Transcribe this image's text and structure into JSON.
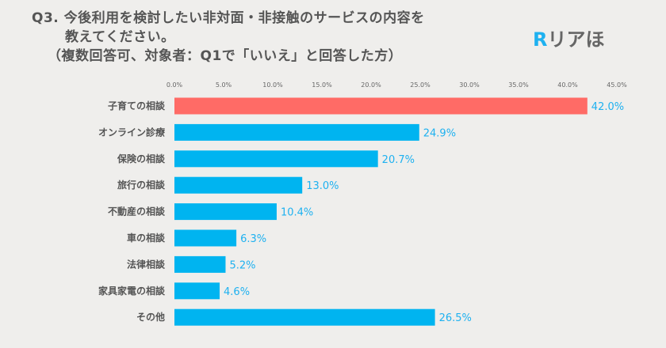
{
  "title": {
    "line1": "Q3. 今後利用を検討したい非対面・非接触のサービスの内容を",
    "line2": "教えてください。",
    "line3": "（複数回答可、対象者：Q1で「いいえ」と回答した方）"
  },
  "logo": {
    "mark": "R",
    "text": "リアほ"
  },
  "colors": {
    "highlight": "#ff6b66",
    "bar": "#00b4f0",
    "label": "#1eb1f0"
  },
  "chart_data": {
    "type": "bar",
    "orientation": "horizontal",
    "categories": [
      "子育ての相談",
      "オンライン診療",
      "保険の相談",
      "旅行の相談",
      "不動産の相談",
      "車の相談",
      "法律相談",
      "家具家電の相談",
      "その他"
    ],
    "values": [
      42.0,
      24.9,
      20.7,
      13.0,
      10.4,
      6.3,
      5.2,
      4.6,
      26.5
    ],
    "value_labels": [
      "42.0%",
      "24.9%",
      "20.7%",
      "13.0%",
      "10.4%",
      "6.3%",
      "5.2%",
      "4.6%",
      "26.5%"
    ],
    "xlim": [
      0,
      45
    ],
    "xticks": [
      0,
      5,
      10,
      15,
      20,
      25,
      30,
      35,
      40,
      45
    ],
    "xtick_labels": [
      "0.0%",
      "5.0%",
      "10.0%",
      "15.0%",
      "20.0%",
      "25.0%",
      "30.0%",
      "35.0%",
      "40.0%",
      "45.0%"
    ],
    "highlight_index": 0,
    "grid": false,
    "legend": "none"
  }
}
